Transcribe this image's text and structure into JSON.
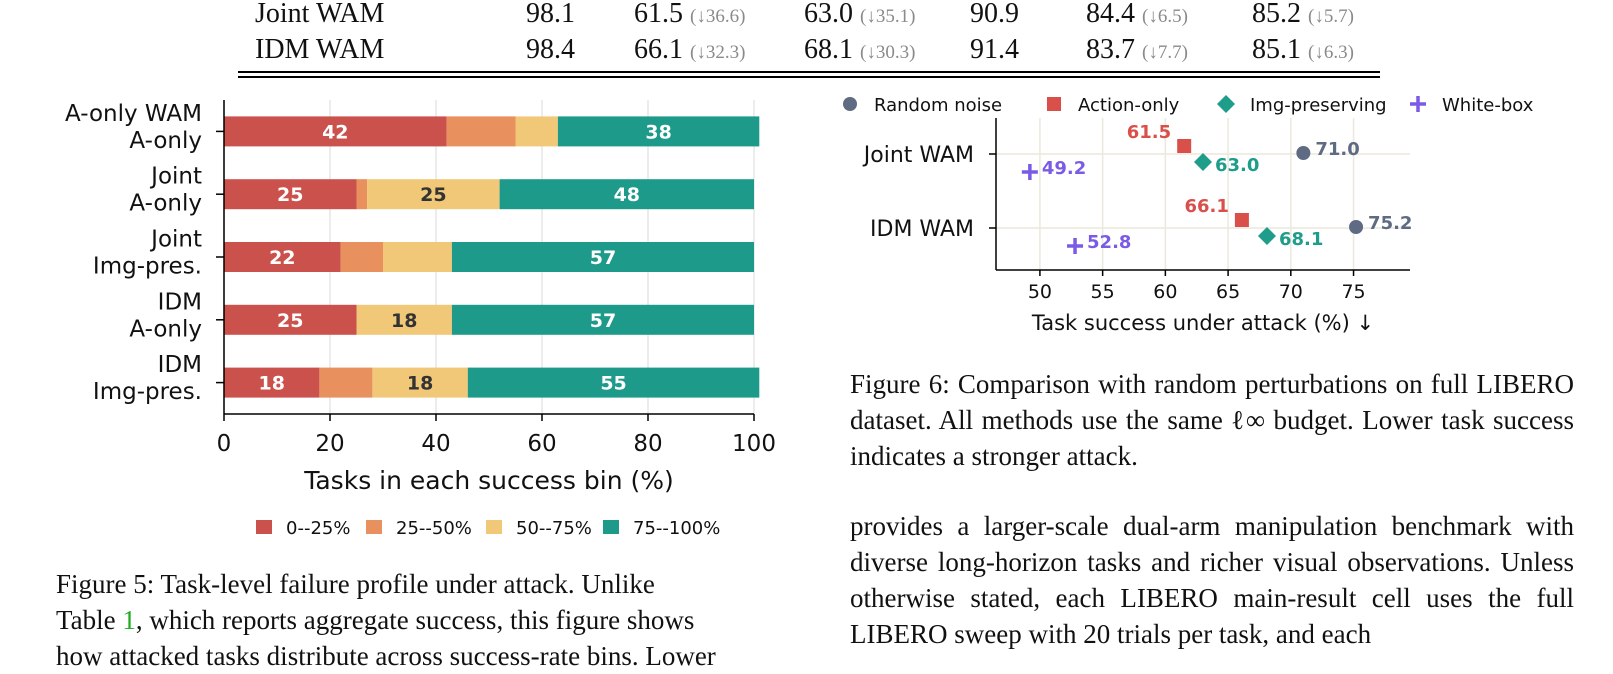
{
  "table": {
    "rows": [
      {
        "method": "Joint WAM",
        "c1": "98.1",
        "c2": "61.5",
        "c2_delta": "(↓36.6)",
        "c3": "63.0",
        "c3_delta": "(↓35.1)",
        "c4": "90.9",
        "c5": "84.4",
        "c5_delta": "(↓6.5)",
        "c6": "85.2",
        "c6_delta": "(↓5.7)"
      },
      {
        "method": "IDM WAM",
        "c1": "98.4",
        "c2": "66.1",
        "c2_delta": "(↓32.3)",
        "c3": "68.1",
        "c3_delta": "(↓30.3)",
        "c4": "91.4",
        "c5": "83.7",
        "c5_delta": "(↓7.7)",
        "c6": "85.1",
        "c6_delta": "(↓6.3)"
      }
    ]
  },
  "chart_data": [
    {
      "type": "bar",
      "orientation": "horizontal-stacked",
      "categories": [
        "A-only WAM\nA-only",
        "Joint\nA-only",
        "Joint\nImg-pres.",
        "IDM\nA-only",
        "IDM\nImg-pres."
      ],
      "series": [
        {
          "name": "0--25%",
          "values": [
            42,
            25,
            22,
            25,
            18
          ],
          "color": "#cb524c"
        },
        {
          "name": "25--50%",
          "values": [
            13,
            2,
            8,
            0,
            10
          ],
          "color": "#e8905e"
        },
        {
          "name": "50--75%",
          "values": [
            8,
            25,
            13,
            18,
            18
          ],
          "color": "#f1c877"
        },
        {
          "name": "75--100%",
          "values": [
            38,
            48,
            57,
            57,
            55
          ],
          "color": "#1d9a8a"
        }
      ],
      "labels": [
        {
          "category": 0,
          "series": 0,
          "text": "42"
        },
        {
          "category": 0,
          "series": 3,
          "text": "38"
        },
        {
          "category": 1,
          "series": 0,
          "text": "25"
        },
        {
          "category": 1,
          "series": 2,
          "text": "25"
        },
        {
          "category": 1,
          "series": 3,
          "text": "48"
        },
        {
          "category": 2,
          "series": 0,
          "text": "22"
        },
        {
          "category": 2,
          "series": 3,
          "text": "57"
        },
        {
          "category": 3,
          "series": 0,
          "text": "25"
        },
        {
          "category": 3,
          "series": 2,
          "text": "18"
        },
        {
          "category": 3,
          "series": 3,
          "text": "57"
        },
        {
          "category": 4,
          "series": 0,
          "text": "18"
        },
        {
          "category": 4,
          "series": 2,
          "text": "18"
        },
        {
          "category": 4,
          "series": 3,
          "text": "55"
        }
      ],
      "xlabel": "Tasks in each success bin (%)",
      "xlim": [
        0,
        100
      ],
      "xticks": [
        "0",
        "20",
        "40",
        "60",
        "80",
        "100"
      ],
      "grid": "vertical",
      "legend": "bottom"
    },
    {
      "type": "scatter",
      "categories": [
        "Joint WAM",
        "IDM WAM"
      ],
      "series": [
        {
          "name": "Random noise",
          "marker": "circle",
          "color": "#5e6b82",
          "points": [
            {
              "category": "Joint WAM",
              "x": 71.0,
              "label": "71.0"
            },
            {
              "category": "IDM WAM",
              "x": 75.2,
              "label": "75.2"
            }
          ]
        },
        {
          "name": "Action-only",
          "marker": "square",
          "color": "#d9504a",
          "points": [
            {
              "category": "Joint WAM",
              "x": 61.5,
              "label": "61.5"
            },
            {
              "category": "IDM WAM",
              "x": 66.1,
              "label": "66.1"
            }
          ]
        },
        {
          "name": "Img-preserving",
          "marker": "diamond",
          "color": "#1f9d8b",
          "points": [
            {
              "category": "Joint WAM",
              "x": 63.0,
              "label": "63.0"
            },
            {
              "category": "IDM WAM",
              "x": 68.1,
              "label": "68.1"
            }
          ]
        },
        {
          "name": "White-box",
          "marker": "plus",
          "color": "#7b5be6",
          "points": [
            {
              "category": "Joint WAM",
              "x": 49.2,
              "label": "49.2"
            },
            {
              "category": "IDM WAM",
              "x": 52.8,
              "label": "52.8"
            }
          ]
        }
      ],
      "xlabel": "Task success under attack (%) ↓",
      "xlim": [
        46.5,
        79.5
      ],
      "xticks": [
        "50",
        "55",
        "60",
        "65",
        "70",
        "75"
      ],
      "grid": "both",
      "legend": "top"
    }
  ],
  "captions": {
    "fig6": "Figure 6:  Comparison with random perturbations on full LIBERO dataset. All methods use the same ℓ∞ budget. Lower task success indicates a stronger attack.",
    "fig5_a": "Figure 5:  Task-level failure profile under attack.  Unlike",
    "fig5_b1": "Table ",
    "fig5_link": "1",
    "fig5_b2": ", which reports aggregate success, this figure shows",
    "fig5_c": "how attacked tasks distribute across success-rate bins. Lower"
  },
  "body_text": "provides a larger-scale dual-arm manipulation benchmark with diverse long-horizon tasks and richer visual observations. Unless otherwise stated, each LIBERO main-result cell uses the full LIBERO sweep with 20 trials per task, and each"
}
